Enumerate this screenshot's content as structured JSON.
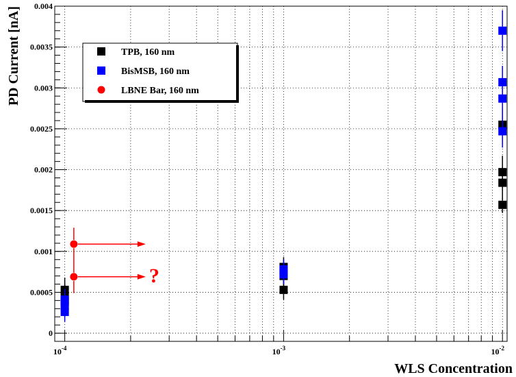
{
  "chart_data": {
    "type": "scatter",
    "xscale": "log",
    "xlabel": "WLS Concentration",
    "ylabel": "PD Current [nA]",
    "xlim": [
      9e-05,
      0.0105
    ],
    "ylim": [
      -0.0001,
      0.004
    ],
    "xticks": [
      {
        "value": 0.0001,
        "base": "10",
        "exp": "-4"
      },
      {
        "value": 0.001,
        "base": "10",
        "exp": "-3"
      },
      {
        "value": 0.01,
        "base": "10",
        "exp": "-2"
      }
    ],
    "yticks": [
      {
        "value": 0,
        "label": "0"
      },
      {
        "value": 0.0005,
        "label": "0.0005"
      },
      {
        "value": 0.001,
        "label": "0.001"
      },
      {
        "value": 0.0015,
        "label": "0.0015"
      },
      {
        "value": 0.002,
        "label": "0.002"
      },
      {
        "value": 0.0025,
        "label": "0.0025"
      },
      {
        "value": 0.003,
        "label": "0.003"
      },
      {
        "value": 0.0035,
        "label": "0.0035"
      },
      {
        "value": 0.004,
        "label": "0.004"
      }
    ],
    "grid": true,
    "legend_position": "top-left",
    "series": [
      {
        "name": "TPB, 160 nm",
        "color": "#000000",
        "marker": "square",
        "points": [
          {
            "x": 0.0001,
            "y": 0.00053,
            "err": 0.00015
          },
          {
            "x": 0.0001,
            "y": 0.00045,
            "err": 0.00015
          },
          {
            "x": 0.0001,
            "y": 0.00038,
            "err": 0.00012
          },
          {
            "x": 0.001,
            "y": 0.00081,
            "err": 0.00012
          },
          {
            "x": 0.001,
            "y": 0.0007,
            "err": 0.00012
          },
          {
            "x": 0.001,
            "y": 0.00053,
            "err": 0.00012
          },
          {
            "x": 0.01,
            "y": 0.00255,
            "err": 0.0002
          },
          {
            "x": 0.01,
            "y": 0.00197,
            "err": 0.0002
          },
          {
            "x": 0.01,
            "y": 0.00184,
            "err": 0.0002
          },
          {
            "x": 0.01,
            "y": 0.00157,
            "err": 0.0001
          }
        ]
      },
      {
        "name": "BisMSB, 160 nm",
        "color": "#0000ff",
        "marker": "square",
        "points": [
          {
            "x": 0.0001,
            "y": 0.00041,
            "err": 0.00013
          },
          {
            "x": 0.0001,
            "y": 0.00033,
            "err": 0.00013
          },
          {
            "x": 0.0001,
            "y": 0.00026,
            "err": 0.00012
          },
          {
            "x": 0.001,
            "y": 0.00078,
            "err": 0.00012
          },
          {
            "x": 0.001,
            "y": 0.00072,
            "err": 0.00012
          },
          {
            "x": 0.01,
            "y": 0.0037,
            "err": 0.00025
          },
          {
            "x": 0.01,
            "y": 0.00307,
            "err": 0.0002
          },
          {
            "x": 0.01,
            "y": 0.00287,
            "err": 0.0002
          },
          {
            "x": 0.01,
            "y": 0.00247,
            "err": 0.0002
          }
        ]
      },
      {
        "name": "LBNE Bar, 160 nm",
        "color": "#ff0000",
        "marker": "circle",
        "points": [
          {
            "x": 0.00011,
            "y": 0.00109,
            "err": 0.0002
          },
          {
            "x": 0.00011,
            "y": 0.00069,
            "err": 0.0002
          }
        ]
      }
    ],
    "annotations": [
      {
        "text": "?",
        "color": "#ff0000"
      }
    ]
  }
}
